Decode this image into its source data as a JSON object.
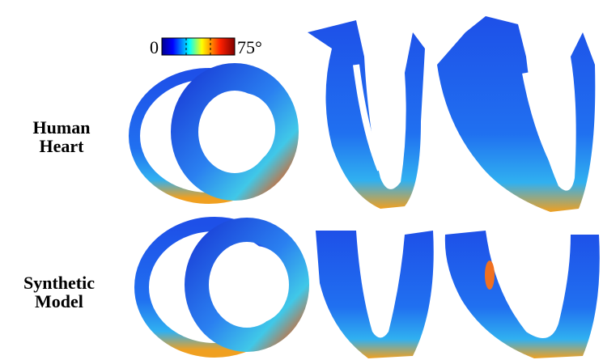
{
  "colorbar": {
    "min_label": "0",
    "max_label": "75°"
  },
  "rows": [
    {
      "label_lines": [
        "Human",
        "Heart"
      ]
    },
    {
      "label_lines": [
        "Synthetic",
        "Model"
      ]
    }
  ]
}
